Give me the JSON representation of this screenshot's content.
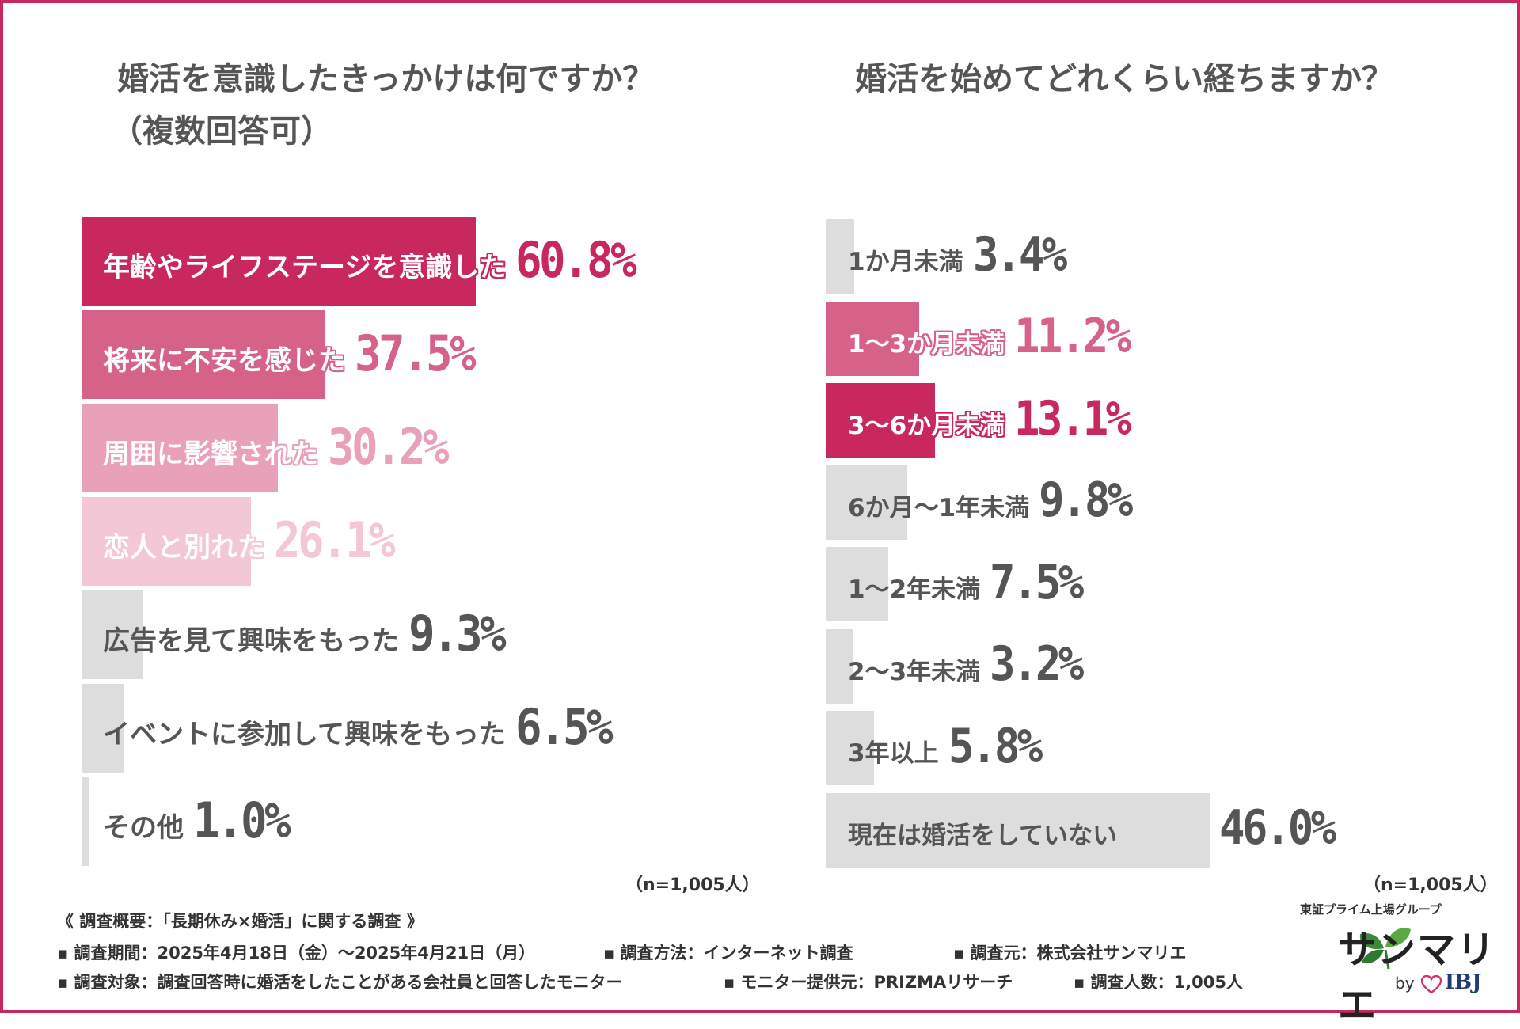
{
  "chart_data": [
    {
      "type": "bar",
      "title": "婚活を意識したきっかけは何ですか？",
      "subtitle": "（複数回答可）",
      "categories": [
        "年齢やライフステージを意識した",
        "将来に不安を感じた",
        "周囲に影響された",
        "恋人と別れた",
        "広告を見て興味をもった",
        "イベントに参加して興味をもった",
        "その他"
      ],
      "values": [
        60.8,
        37.5,
        30.2,
        26.1,
        9.3,
        6.5,
        1.0
      ],
      "value_labels": [
        "60.8%",
        "37.5%",
        "30.2%",
        "26.1%",
        "9.3%",
        "6.5%",
        "1.0%"
      ],
      "colors": [
        "#c8285e",
        "#d66288",
        "#e9a1b9",
        "#f3c7d6",
        "#dddddd",
        "#dddddd",
        "#dddddd"
      ],
      "text_colors": [
        "#ffffff",
        "#ffffff",
        "#ffffff",
        "#ffffff",
        "#555555",
        "#555555",
        "#555555"
      ],
      "value_colors": [
        "#c8285e",
        "#d66288",
        "#e9a1b9",
        "#f3c7d6",
        "#555555",
        "#555555",
        "#555555"
      ],
      "note": "（n=1,005人）",
      "orientation": "horizontal"
    },
    {
      "type": "bar",
      "title": "婚活を始めてどれくらい経ちますか？",
      "categories": [
        "1か月未満",
        "1〜3か月未満",
        "3〜6か月未満",
        "6か月〜1年未満",
        "1〜2年未満",
        "2〜3年未満",
        "3年以上",
        "現在は婚活をしていない"
      ],
      "values": [
        3.4,
        11.2,
        13.1,
        9.8,
        7.5,
        3.2,
        5.8,
        46.0
      ],
      "value_labels": [
        "3.4%",
        "11.2%",
        "13.1%",
        "9.8%",
        "7.5%",
        "3.2%",
        "5.8%",
        "46.0%"
      ],
      "colors": [
        "#dddddd",
        "#d66288",
        "#c8285e",
        "#dddddd",
        "#dddddd",
        "#dddddd",
        "#dddddd",
        "#dddddd"
      ],
      "text_colors": [
        "#555555",
        "#ffffff",
        "#ffffff",
        "#555555",
        "#555555",
        "#555555",
        "#555555",
        "#555555"
      ],
      "value_colors": [
        "#555555",
        "#d66288",
        "#c8285e",
        "#555555",
        "#555555",
        "#555555",
        "#555555",
        "#555555"
      ],
      "note": "（n=1,005人）",
      "orientation": "horizontal"
    }
  ],
  "footer": {
    "heading": "《 調査概要：「長期休み×婚活」に関する調査 》",
    "period": "▪ 調査期間：2025年4月18日（金）〜2025年4月21日（月）",
    "method": "▪ 調査方法：インターネット調査",
    "source": "▪ 調査元：株式会社サンマリエ",
    "target": "▪ 調査対象：調査回答時に婚活をしたことがある会社員と回答したモニター",
    "provider": "▪ モニター提供元：PRIZMAリサーチ",
    "count": "▪ 調査人数：1,005人"
  },
  "logo": {
    "sub": "東証プライム上場グループ",
    "name": "サンマリエ",
    "by": "by",
    "ibj": "IBJ"
  },
  "colors": {
    "brand": "#c8285e",
    "muted_bar": "#dddddd",
    "text": "#555555"
  }
}
